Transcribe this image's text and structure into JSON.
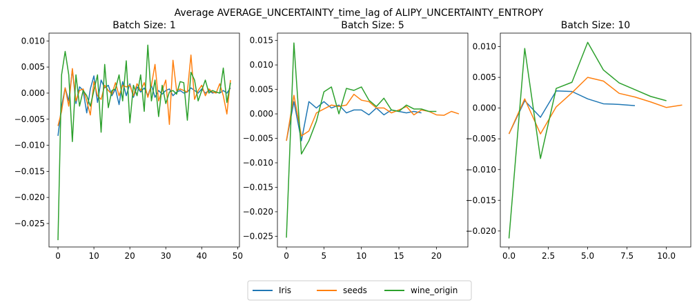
{
  "title": "Average AVERAGE_UNCERTAINTY_time_lag of ALIPY_UNCERTAINTY_ENTROPY",
  "legend": {
    "placement": "bottom-center",
    "entries": [
      {
        "name": "Iris",
        "color": "#1f77b4"
      },
      {
        "name": "seeds",
        "color": "#ff7f0e"
      },
      {
        "name": "wine_origin",
        "color": "#2ca02c"
      }
    ]
  },
  "chart_data": [
    {
      "type": "line",
      "title": "Batch Size: 1",
      "xlim": [
        -2.5,
        50.5
      ],
      "ylim": [
        -0.0295,
        0.0115
      ],
      "xticks": [
        0,
        10,
        20,
        30,
        40,
        50
      ],
      "xtick_labels": [
        "0",
        "10",
        "20",
        "30",
        "40",
        "50"
      ],
      "yticks": [
        -0.025,
        -0.02,
        -0.015,
        -0.01,
        -0.005,
        0.0,
        0.005,
        0.01
      ],
      "ytick_labels": [
        "−0.025",
        "−0.020",
        "−0.015",
        "−0.010",
        "−0.005",
        "0.000",
        "0.005",
        "0.010"
      ],
      "grid": false,
      "series": [
        {
          "name": "Iris",
          "color": "#1f77b4",
          "x": [
            0,
            1,
            2,
            3,
            4,
            5,
            6,
            7,
            8,
            9,
            10,
            11,
            12,
            13,
            14,
            15,
            16,
            17,
            18,
            19,
            20,
            21,
            22,
            23,
            24,
            25,
            26,
            27,
            28,
            29,
            30,
            31,
            32,
            33,
            34,
            35,
            36,
            37,
            38,
            39,
            40,
            41,
            42,
            43,
            44,
            45,
            46,
            47,
            48
          ],
          "y": [
            -0.0082,
            -0.0025,
            0.001,
            -0.0015,
            0.0045,
            -0.002,
            0.0012,
            0.0005,
            -0.0038,
            0.0008,
            0.0033,
            -0.0018,
            0.0025,
            0.001,
            0.0015,
            -0.0005,
            0.0008,
            -0.0022,
            0.0022,
            -0.0005,
            0.0018,
            -0.0008,
            0.0012,
            0.0002,
            0.001,
            -0.0005,
            0.0015,
            -0.0008,
            0.0005,
            -0.0002,
            0.0005,
            0.0008,
            -0.0005,
            0.0002,
            0.0005,
            0.0,
            0.0002,
            0.001,
            0.0005,
            0.0,
            0.0008,
            0.0,
            0.0005,
            0.0,
            0.0002,
            0.0,
            0.0005,
            0.0,
            0.001
          ]
        },
        {
          "name": "seeds",
          "color": "#ff7f0e",
          "x": [
            0,
            1,
            2,
            3,
            4,
            5,
            6,
            7,
            8,
            9,
            10,
            11,
            12,
            13,
            14,
            15,
            16,
            17,
            18,
            19,
            20,
            21,
            22,
            23,
            24,
            25,
            26,
            27,
            28,
            29,
            30,
            31,
            32,
            33,
            34,
            35,
            36,
            37,
            38,
            39,
            40,
            41,
            42,
            43,
            44,
            45,
            46,
            47,
            48
          ],
          "y": [
            -0.0063,
            -0.0035,
            0.001,
            -0.0025,
            0.0047,
            -0.0015,
            0.0005,
            0.0008,
            -0.0015,
            -0.0042,
            0.0022,
            -0.0005,
            -0.0012,
            0.0015,
            0.0005,
            -0.0002,
            0.002,
            -0.0005,
            0.0015,
            0.0012,
            0.0015,
            -0.0005,
            0.0018,
            0.0005,
            0.002,
            -0.0008,
            0.0015,
            0.0055,
            -0.0015,
            0.0005,
            0.0025,
            -0.006,
            0.0063,
            0.0005,
            0.0008,
            0.0005,
            0.0002,
            0.0073,
            -0.0012,
            0.0005,
            0.0015,
            -0.0005,
            0.0008,
            0.0002,
            0.0,
            0.0018,
            -0.0005,
            -0.004,
            0.0025
          ]
        },
        {
          "name": "wine_origin",
          "color": "#2ca02c",
          "x": [
            0,
            1,
            2,
            3,
            4,
            5,
            6,
            7,
            8,
            9,
            10,
            11,
            12,
            13,
            14,
            15,
            16,
            17,
            18,
            19,
            20,
            21,
            22,
            23,
            24,
            25,
            26,
            27,
            28,
            29,
            30,
            31,
            32,
            33,
            34,
            35,
            36,
            37,
            38,
            39,
            40,
            41,
            42,
            43,
            44,
            45,
            46,
            47,
            48
          ],
          "y": [
            -0.0282,
            0.0035,
            0.008,
            0.0035,
            -0.0093,
            0.0035,
            -0.0025,
            0.0005,
            -0.0005,
            -0.0025,
            0.0005,
            0.0035,
            -0.0075,
            0.0055,
            -0.0028,
            0.0005,
            0.0008,
            0.0035,
            -0.0015,
            0.0062,
            -0.0057,
            0.0015,
            -0.0005,
            0.0035,
            -0.0035,
            0.0092,
            -0.0015,
            0.0025,
            -0.0045,
            0.0015,
            -0.002,
            0.0002,
            0.0005,
            -0.0002,
            0.0022,
            0.002,
            -0.0052,
            0.004,
            0.0025,
            -0.0015,
            0.0005,
            0.0025,
            0.0,
            0.0005,
            0.0002,
            0.0,
            0.0048,
            -0.0018,
            0.002
          ]
        }
      ]
    },
    {
      "type": "line",
      "title": "Batch Size: 5",
      "xlim": [
        -1.2,
        24.2
      ],
      "ylim": [
        -0.0272,
        0.0165
      ],
      "xticks": [
        0,
        5,
        10,
        15,
        20
      ],
      "xtick_labels": [
        "0",
        "5",
        "10",
        "15",
        "20"
      ],
      "yticks": [
        -0.025,
        -0.02,
        -0.015,
        -0.01,
        -0.005,
        0.0,
        0.005,
        0.01,
        0.015
      ],
      "ytick_labels": [
        "−0.025",
        "−0.020",
        "−0.015",
        "−0.010",
        "−0.005",
        "0.000",
        "0.005",
        "0.010",
        "0.015"
      ],
      "grid": false,
      "series": [
        {
          "name": "Iris",
          "color": "#1f77b4",
          "x": [
            0,
            1,
            2,
            3,
            4,
            5,
            6,
            7,
            8,
            9,
            10,
            11,
            12,
            13,
            14,
            15,
            16,
            17,
            18
          ],
          "y": [
            -0.0055,
            0.0025,
            -0.0055,
            0.0025,
            0.0012,
            0.0025,
            0.0012,
            0.0018,
            0.0002,
            0.0008,
            0.0008,
            -0.0002,
            0.0012,
            -0.0002,
            0.0008,
            0.0005,
            0.0002,
            0.0005,
            0.0002
          ]
        },
        {
          "name": "seeds",
          "color": "#ff7f0e",
          "x": [
            0,
            1,
            2,
            3,
            4,
            5,
            6,
            7,
            8,
            9,
            10,
            11,
            12,
            13,
            14,
            15,
            16,
            17,
            18,
            19,
            20,
            21,
            22,
            23
          ],
          "y": [
            -0.0055,
            0.0038,
            -0.0045,
            -0.0035,
            0.0002,
            0.001,
            0.0018,
            0.0015,
            0.0018,
            0.004,
            0.0028,
            0.0025,
            0.0012,
            0.0012,
            0.0002,
            0.0008,
            0.0015,
            -0.0002,
            0.0008,
            0.0005,
            -0.0002,
            -0.0003,
            0.0005,
            0.0
          ]
        },
        {
          "name": "wine_origin",
          "color": "#2ca02c",
          "x": [
            0,
            1,
            2,
            3,
            4,
            5,
            6,
            7,
            8,
            9,
            10,
            11,
            12,
            13,
            14,
            15,
            16,
            17,
            18,
            19,
            20
          ],
          "y": [
            -0.0253,
            0.0145,
            -0.0082,
            -0.0055,
            -0.0015,
            0.0045,
            0.0055,
            0.0,
            0.0052,
            0.0048,
            0.0055,
            0.0028,
            0.0015,
            0.0032,
            0.0008,
            0.0005,
            0.0018,
            0.001,
            0.001,
            0.0005,
            0.0005
          ]
        }
      ]
    },
    {
      "type": "line",
      "title": "Batch Size: 10",
      "xlim": [
        -0.55,
        11.55
      ],
      "ylim": [
        -0.0226,
        0.0122
      ],
      "xticks": [
        0,
        2.5,
        5,
        7.5,
        10
      ],
      "xtick_labels": [
        "0.0",
        "2.5",
        "5.0",
        "7.5",
        "10.0"
      ],
      "yticks": [
        -0.02,
        -0.015,
        -0.01,
        -0.005,
        0.0,
        0.005,
        0.01
      ],
      "ytick_labels": [
        "−0.020",
        "−0.015",
        "−0.010",
        "−0.005",
        "0.000",
        "0.005",
        "0.010"
      ],
      "grid": false,
      "series": [
        {
          "name": "Iris",
          "color": "#1f77b4",
          "x": [
            0,
            1,
            2,
            3,
            4,
            5,
            6,
            7,
            8
          ],
          "y": [
            -0.0042,
            0.0012,
            -0.0015,
            0.0028,
            0.0027,
            0.0015,
            0.0007,
            0.0006,
            0.0004
          ]
        },
        {
          "name": "seeds",
          "color": "#ff7f0e",
          "x": [
            0,
            1,
            2,
            3,
            4,
            5,
            6,
            7,
            8,
            9,
            10,
            11
          ],
          "y": [
            -0.0042,
            0.0015,
            -0.0042,
            0.0002,
            0.0025,
            0.005,
            0.0044,
            0.0024,
            0.0018,
            0.001,
            0.0001,
            0.0005
          ]
        },
        {
          "name": "wine_origin",
          "color": "#2ca02c",
          "x": [
            0,
            1,
            2,
            3,
            4,
            5,
            6,
            7,
            8,
            9,
            10
          ],
          "y": [
            -0.0212,
            0.0097,
            -0.0082,
            0.0032,
            0.0042,
            0.0107,
            0.0062,
            0.0041,
            0.003,
            0.0019,
            0.0012
          ]
        }
      ]
    }
  ]
}
